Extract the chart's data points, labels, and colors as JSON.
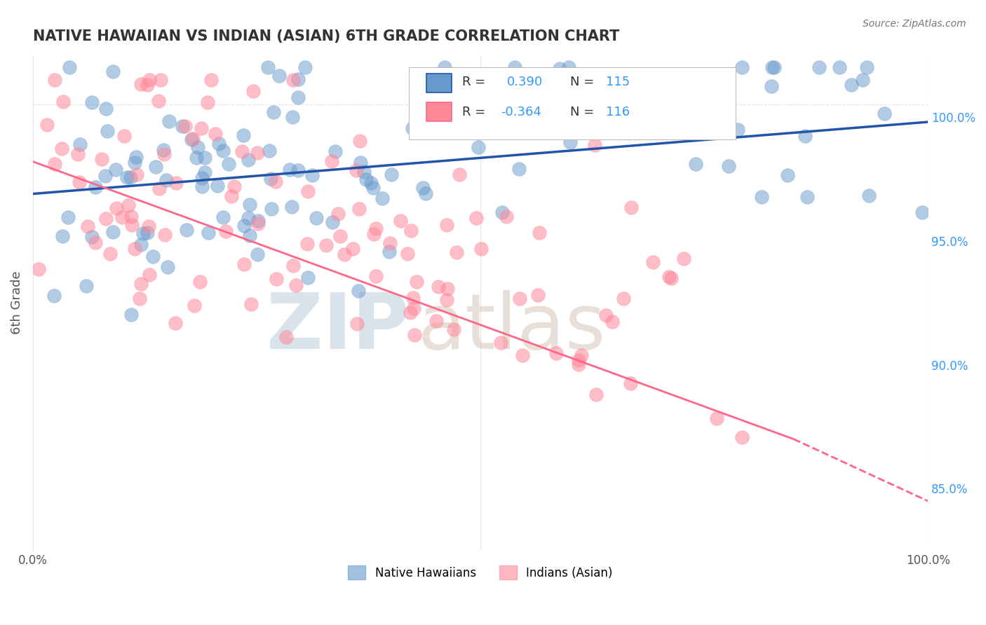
{
  "title": "NATIVE HAWAIIAN VS INDIAN (ASIAN) 6TH GRADE CORRELATION CHART",
  "source_text": "Source: ZipAtlas.com",
  "ylabel": "6th Grade",
  "ytick_labels": [
    "85.0%",
    "90.0%",
    "95.0%",
    "100.0%"
  ],
  "ytick_values": [
    0.85,
    0.9,
    0.95,
    1.0
  ],
  "xlim": [
    0.0,
    1.0
  ],
  "ylim": [
    0.825,
    1.025
  ],
  "legend_r1": "R =  0.390",
  "legend_n1": "N = 115",
  "legend_r2": "R = -0.364",
  "legend_n2": "N = 116",
  "blue_color": "#6699CC",
  "pink_color": "#FF8899",
  "trend_blue_color": "#2255AA",
  "trend_pink_color": "#FF6688",
  "watermark_zip": "ZIP",
  "watermark_atlas": "atlas",
  "watermark_color_zip": "#BBCCDD",
  "watermark_color_atlas": "#CCBBAA",
  "background_color": "#FFFFFF",
  "grid_color": "#DDDDDD",
  "title_color": "#333333",
  "axis_label_color": "#555555",
  "right_tick_color": "#3399FF",
  "seed": 42,
  "n_blue": 115,
  "n_pink": 116,
  "blue_trend_start_y": 0.969,
  "blue_trend_end_y": 0.998,
  "pink_trend_start_y": 0.982,
  "pink_trend_end_y": 0.87,
  "pink_trend_dashed_end_y": 0.845
}
